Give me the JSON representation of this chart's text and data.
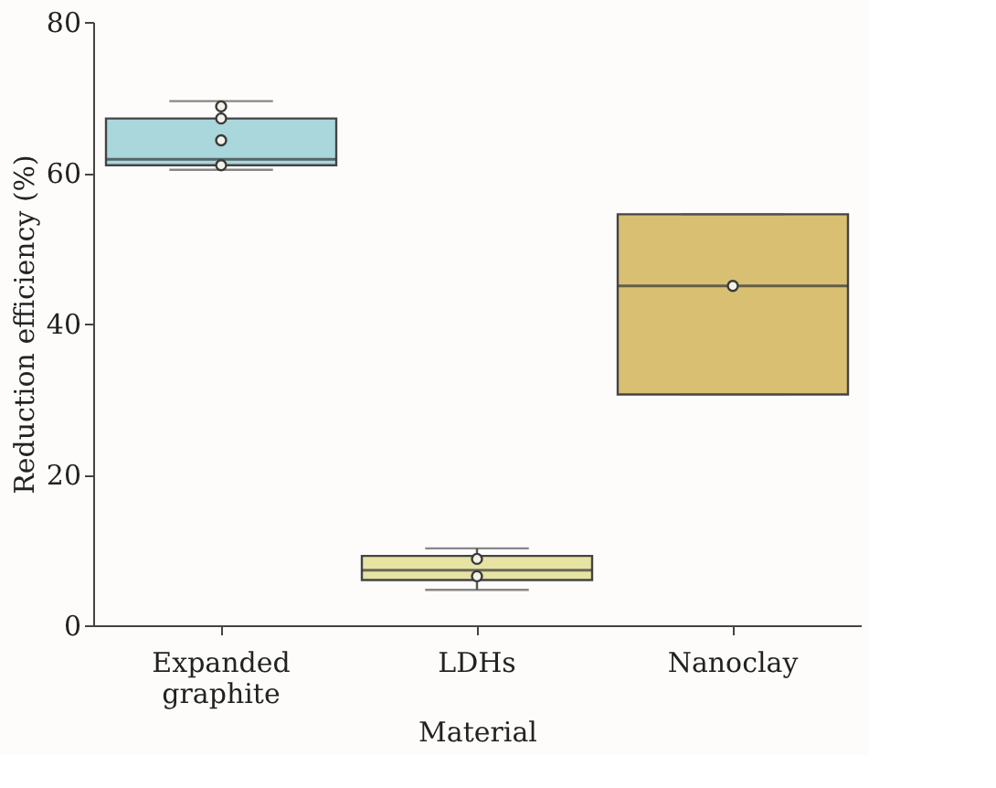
{
  "chart_data": {
    "type": "box",
    "xlabel": "Material",
    "ylabel": "Reduction efficiency (%)",
    "categories": [
      "Expanded graphite",
      "LDHs",
      "Nanoclay"
    ],
    "ylim": [
      0,
      80
    ],
    "yticks": [
      0,
      20,
      40,
      60,
      80
    ],
    "grid": false,
    "series": [
      {
        "colors": [
          "#a9d7db",
          "#e6e3a3",
          "#d8bf72"
        ],
        "boxes": [
          {
            "low": 60.4,
            "q1": 61.0,
            "median": 61.8,
            "q3": 67.2,
            "high": 69.5
          },
          {
            "low": 4.7,
            "q1": 6.0,
            "median": 7.3,
            "q3": 9.2,
            "high": 10.2
          },
          {
            "low": 30.6,
            "q1": 30.6,
            "median": 45.0,
            "q3": 54.5,
            "high": 54.5
          }
        ]
      },
      {
        "type": "scatter",
        "color": "#3a3a3a",
        "marker": "circle",
        "x": [
          "Expanded graphite",
          "Expanded graphite",
          "Expanded graphite",
          "Expanded graphite",
          "LDHs",
          "LDHs",
          "Nanoclay"
        ],
        "values": [
          68.8,
          67.2,
          64.3,
          61.0,
          8.8,
          6.5,
          45.0
        ]
      }
    ]
  }
}
